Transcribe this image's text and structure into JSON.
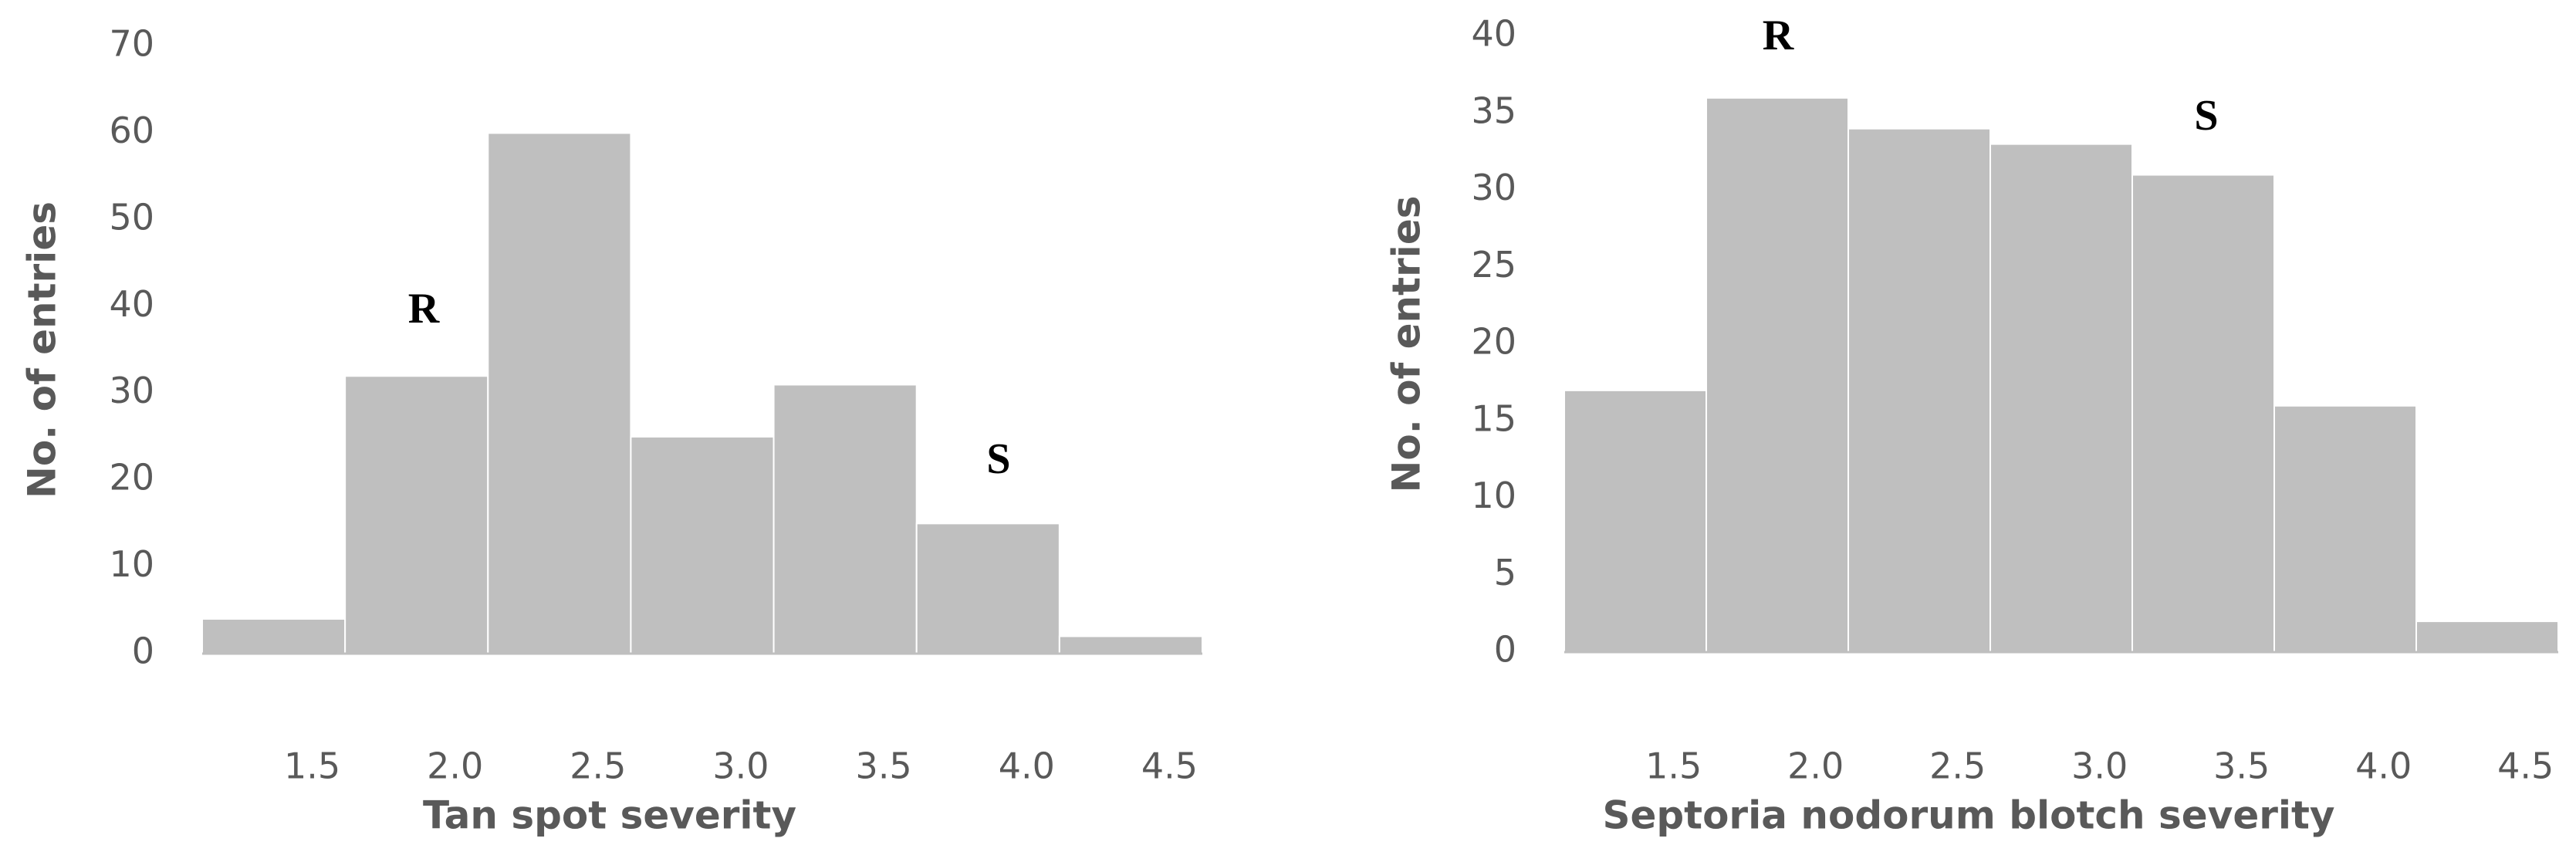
{
  "chart_data": [
    {
      "type": "bar",
      "x_label": "Tan spot severity",
      "y_label": "No. of entries",
      "categories": [
        "1.5",
        "2.0",
        "2.5",
        "3.0",
        "3.5",
        "4.0",
        "4.5"
      ],
      "values": [
        4,
        32,
        60,
        25,
        31,
        15,
        2
      ],
      "color": "#bfbfbf",
      "ylim": [
        0,
        70
      ],
      "yticks": [
        0,
        10,
        20,
        30,
        40,
        50,
        60,
        70
      ],
      "annotations": [
        "R",
        "S"
      ]
    },
    {
      "type": "bar",
      "x_label": "Septoria nodorum blotch severity",
      "y_label": "No. of entries",
      "categories": [
        "1.5",
        "2.0",
        "2.5",
        "3.0",
        "3.5",
        "4.0",
        "4.5"
      ],
      "values": [
        17,
        36,
        34,
        33,
        31,
        16,
        2
      ],
      "color": "#bfbfbf",
      "ylim": [
        0,
        40
      ],
      "yticks": [
        0,
        5,
        10,
        15,
        20,
        25,
        30,
        35,
        40
      ],
      "annotations": [
        "R",
        "S"
      ]
    }
  ]
}
